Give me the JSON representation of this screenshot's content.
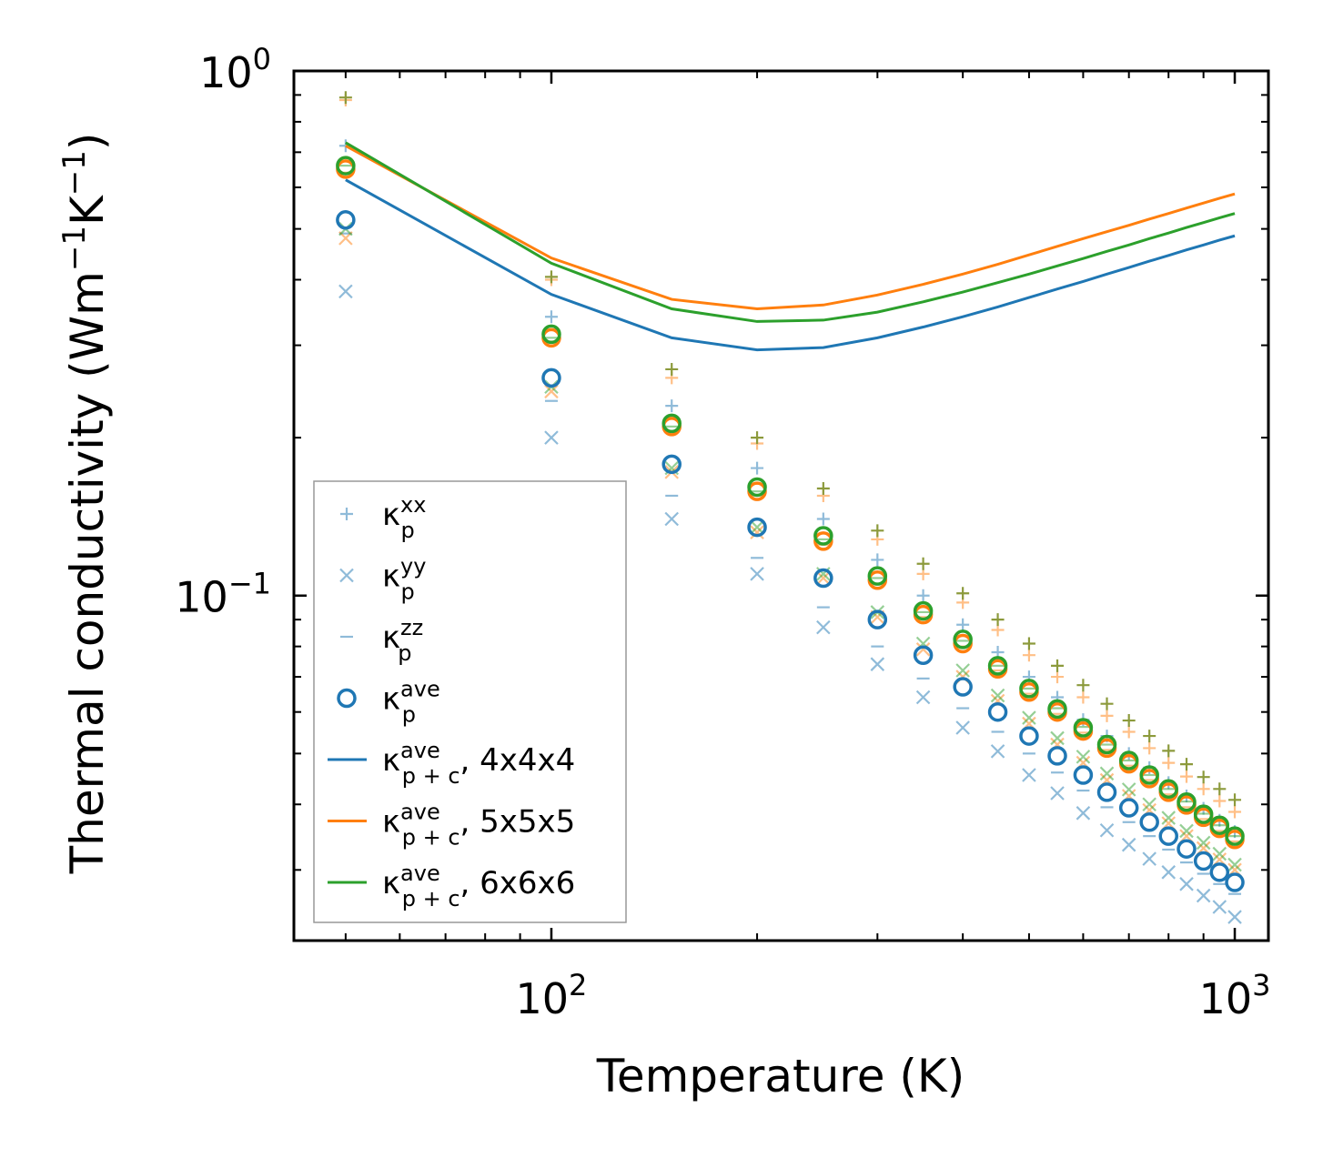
{
  "chart_data": {
    "type": "scatter",
    "xscale": "log",
    "yscale": "log",
    "xlim": [
      42,
      1120
    ],
    "ylim": [
      0.022,
      1.0
    ],
    "xlabel": "Temperature (K)",
    "ylabel": "Thermal conductivity (Wm⁻¹K⁻¹)",
    "ylabel_parts": {
      "base": "Thermal conductivity (Wm",
      "exp1": "−1",
      "mid": "K",
      "exp2": "−1",
      "end": ")"
    },
    "xticks": [
      {
        "value": 100,
        "base": "10",
        "exp": "2"
      },
      {
        "value": 1000,
        "base": "10",
        "exp": "3"
      }
    ],
    "yticks": [
      {
        "value": 0.1,
        "base": "10",
        "exp": "−1"
      },
      {
        "value": 1.0,
        "base": "10",
        "exp": "0"
      }
    ],
    "x": [
      50,
      100,
      150,
      200,
      250,
      300,
      350,
      400,
      450,
      500,
      550,
      600,
      650,
      700,
      750,
      800,
      850,
      900,
      950,
      1000
    ],
    "colors": {
      "c4": "#1f77b4",
      "c5": "#ff7f0e",
      "c6": "#2ca02c",
      "olive": "#8c9a3c"
    },
    "series": [
      {
        "name": "κp_xx_4",
        "group": "c4",
        "marker": "plus",
        "faded": true,
        "values": [
          0.72,
          0.34,
          0.23,
          0.175,
          0.14,
          0.117,
          0.1,
          0.088,
          0.078,
          0.07,
          0.064,
          0.058,
          0.054,
          0.05,
          0.047,
          0.044,
          0.0415,
          0.0393,
          0.0373,
          0.0355
        ]
      },
      {
        "name": "κp_yy_4",
        "group": "c4",
        "marker": "x",
        "faded": true,
        "values": [
          0.38,
          0.2,
          0.14,
          0.11,
          0.087,
          0.074,
          0.064,
          0.056,
          0.0505,
          0.0455,
          0.042,
          0.0385,
          0.0357,
          0.0335,
          0.0315,
          0.0297,
          0.0282,
          0.0268,
          0.0255,
          0.0244
        ]
      },
      {
        "name": "κp_zz_4",
        "group": "c4",
        "marker": "hline",
        "faded": true,
        "values": [
          0.49,
          0.235,
          0.155,
          0.118,
          0.095,
          0.08,
          0.0695,
          0.061,
          0.055,
          0.05,
          0.046,
          0.0425,
          0.0395,
          0.037,
          0.0348,
          0.0328,
          0.031,
          0.0295,
          0.0282,
          0.027
        ]
      },
      {
        "name": "κp_xx_5",
        "group": "c5",
        "marker": "plus",
        "faded": true,
        "values": [
          0.88,
          0.4,
          0.26,
          0.195,
          0.155,
          0.128,
          0.11,
          0.097,
          0.086,
          0.077,
          0.07,
          0.064,
          0.059,
          0.055,
          0.0512,
          0.048,
          0.0452,
          0.0428,
          0.0406,
          0.0387
        ]
      },
      {
        "name": "κp_yy_5",
        "group": "c5",
        "marker": "x",
        "faded": true,
        "values": [
          0.48,
          0.245,
          0.172,
          0.132,
          0.108,
          0.091,
          0.079,
          0.07,
          0.063,
          0.057,
          0.052,
          0.048,
          0.0445,
          0.0415,
          0.039,
          0.0368,
          0.0348,
          0.033,
          0.0314,
          0.03
        ]
      },
      {
        "name": "κp_zz_5",
        "group": "c5",
        "marker": "hline",
        "faded": true,
        "values": [
          0.64,
          0.305,
          0.205,
          0.155,
          0.125,
          0.105,
          0.091,
          0.08,
          0.072,
          0.065,
          0.0595,
          0.0548,
          0.0508,
          0.0474,
          0.0445,
          0.0418,
          0.0395,
          0.0375,
          0.0356,
          0.034
        ]
      },
      {
        "name": "κp_xx_6",
        "group": "olive",
        "marker": "plus",
        "faded": false,
        "values": [
          0.89,
          0.405,
          0.27,
          0.2,
          0.16,
          0.133,
          0.115,
          0.101,
          0.09,
          0.081,
          0.0735,
          0.0675,
          0.0622,
          0.0578,
          0.054,
          0.0506,
          0.0477,
          0.0451,
          0.0428,
          0.0408
        ]
      },
      {
        "name": "κp_yy_6",
        "group": "c6",
        "marker": "x",
        "faded": true,
        "values": [
          0.5,
          0.25,
          0.175,
          0.135,
          0.11,
          0.093,
          0.081,
          0.072,
          0.0645,
          0.0585,
          0.0535,
          0.0493,
          0.0458,
          0.0427,
          0.04,
          0.0377,
          0.0356,
          0.0338,
          0.0322,
          0.0307
        ]
      },
      {
        "name": "κp_zz_6",
        "group": "c6",
        "marker": "hline",
        "faded": true,
        "values": [
          0.66,
          0.31,
          0.21,
          0.158,
          0.128,
          0.108,
          0.093,
          0.082,
          0.0735,
          0.0665,
          0.061,
          0.0562,
          0.052,
          0.0485,
          0.0455,
          0.0428,
          0.0405,
          0.0384,
          0.0365,
          0.0348
        ]
      },
      {
        "name": "κp_ave_4",
        "group": "c4",
        "marker": "circle",
        "faded": false,
        "values": [
          0.52,
          0.26,
          0.178,
          0.135,
          0.108,
          0.09,
          0.077,
          0.067,
          0.06,
          0.054,
          0.0495,
          0.0455,
          0.0422,
          0.0394,
          0.037,
          0.0348,
          0.0329,
          0.0312,
          0.0297,
          0.0284
        ]
      },
      {
        "name": "κp_ave_5",
        "group": "c5",
        "marker": "circle",
        "faded": false,
        "values": [
          0.65,
          0.31,
          0.21,
          0.158,
          0.127,
          0.107,
          0.092,
          0.081,
          0.0725,
          0.0655,
          0.06,
          0.0552,
          0.0512,
          0.0478,
          0.0448,
          0.0422,
          0.0399,
          0.0378,
          0.036,
          0.0343
        ]
      },
      {
        "name": "κp_ave_6",
        "group": "c6",
        "marker": "circle",
        "faded": false,
        "values": [
          0.66,
          0.315,
          0.213,
          0.161,
          0.13,
          0.109,
          0.0935,
          0.0825,
          0.0735,
          0.0665,
          0.0608,
          0.056,
          0.052,
          0.0485,
          0.0455,
          0.0428,
          0.0404,
          0.0383,
          0.0365,
          0.0348
        ]
      },
      {
        "name": "κp+c_ave_4x4x4",
        "group": "c4",
        "marker": "line",
        "faded": false,
        "x": [
          50,
          100,
          150,
          200,
          250,
          300,
          350,
          400,
          450,
          500,
          550,
          600,
          650,
          700,
          750,
          800,
          850,
          900,
          950,
          1000
        ],
        "values": [
          0.62,
          0.375,
          0.31,
          0.294,
          0.297,
          0.31,
          0.325,
          0.34,
          0.355,
          0.37,
          0.384,
          0.397,
          0.41,
          0.422,
          0.434,
          0.445,
          0.456,
          0.466,
          0.476,
          0.485
        ]
      },
      {
        "name": "κp+c_ave_5x5x5",
        "group": "c5",
        "marker": "line",
        "faded": false,
        "x": [
          50,
          100,
          150,
          200,
          250,
          300,
          350,
          400,
          450,
          500,
          550,
          600,
          650,
          700,
          750,
          800,
          850,
          900,
          950,
          1000
        ],
        "values": [
          0.72,
          0.44,
          0.367,
          0.352,
          0.358,
          0.374,
          0.392,
          0.41,
          0.428,
          0.446,
          0.463,
          0.479,
          0.494,
          0.508,
          0.522,
          0.535,
          0.548,
          0.56,
          0.572,
          0.583
        ]
      },
      {
        "name": "κp+c_ave_6x6x6",
        "group": "c6",
        "marker": "line",
        "faded": false,
        "x": [
          50,
          100,
          150,
          200,
          250,
          300,
          350,
          400,
          450,
          500,
          550,
          600,
          650,
          700,
          750,
          800,
          850,
          900,
          950,
          1000
        ],
        "values": [
          0.73,
          0.43,
          0.352,
          0.333,
          0.335,
          0.347,
          0.363,
          0.379,
          0.395,
          0.41,
          0.425,
          0.439,
          0.453,
          0.466,
          0.479,
          0.491,
          0.503,
          0.514,
          0.525,
          0.535
        ]
      }
    ],
    "legend": {
      "position": "lower-left",
      "entries": [
        {
          "marker": "plus",
          "color": "#1f77b4",
          "faded": true,
          "label": "κ",
          "sub": "p",
          "sup": "xx",
          "tail": ""
        },
        {
          "marker": "x",
          "color": "#1f77b4",
          "faded": true,
          "label": "κ",
          "sub": "p",
          "sup": "yy",
          "tail": ""
        },
        {
          "marker": "hline",
          "color": "#1f77b4",
          "faded": true,
          "label": "κ",
          "sub": "p",
          "sup": "zz",
          "tail": ""
        },
        {
          "marker": "circle",
          "color": "#1f77b4",
          "faded": false,
          "label": "κ",
          "sub": "p",
          "sup": "ave",
          "tail": ""
        },
        {
          "marker": "line",
          "color": "#1f77b4",
          "faded": false,
          "label": "κ",
          "sub": "p + c",
          "sup": "ave",
          "tail": ", 4x4x4"
        },
        {
          "marker": "line",
          "color": "#ff7f0e",
          "faded": false,
          "label": "κ",
          "sub": "p + c",
          "sup": "ave",
          "tail": ", 5x5x5"
        },
        {
          "marker": "line",
          "color": "#2ca02c",
          "faded": false,
          "label": "κ",
          "sub": "p + c",
          "sup": "ave",
          "tail": ", 6x6x6"
        }
      ]
    }
  }
}
